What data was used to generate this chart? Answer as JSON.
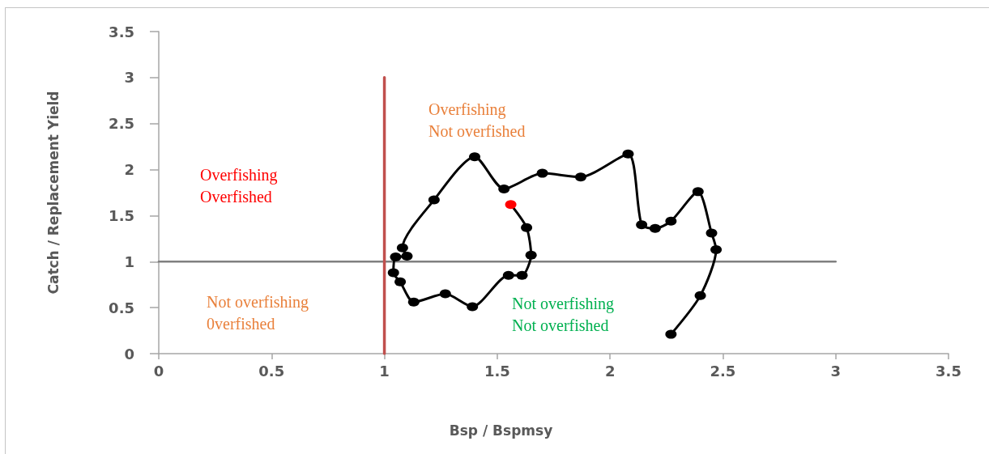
{
  "chart_data": {
    "type": "line",
    "xlabel": "Bsp / Bspmsy",
    "ylabel": "Catch / Replacement Yield",
    "xlim": [
      0,
      3.5
    ],
    "ylim": [
      0,
      3.5
    ],
    "xticks": [
      0,
      0.5,
      1,
      1.5,
      2,
      2.5,
      3,
      3.5
    ],
    "yticks": [
      0,
      0.5,
      1,
      1.5,
      2,
      2.5,
      3,
      3.5
    ],
    "grid": false,
    "marker": "circle",
    "line_style": "solid",
    "annotations": [
      "Overfishing\nOverfished",
      "Overfishing\nNot overfished",
      "Not overfishing\n0verfished",
      "Not overfishing\nNot overfished"
    ],
    "series": [
      {
        "color": "#808080",
        "marker": "none",
        "x": [
          0,
          3
        ],
        "values": [
          1,
          1
        ]
      },
      {
        "color": "#c0504d",
        "marker": "none",
        "x": [
          1,
          1
        ],
        "values": [
          0,
          3
        ]
      },
      {
        "color": "#000000",
        "colors": [
          "#000000",
          "#000000",
          "#000000",
          "#000000",
          "#000000",
          "#000000",
          "#000000",
          "#000000",
          "#000000",
          "#000000",
          "#000000",
          "#000000",
          "#000000",
          "#000000",
          "#000000",
          "#000000",
          "#000000",
          "#000000",
          "#000000",
          "#000000",
          "#000000",
          "#000000",
          "#000000",
          "#000000",
          "#000000",
          "#000000",
          "#ff0000"
        ],
        "x": [
          2.27,
          2.4,
          2.47,
          2.45,
          2.39,
          2.27,
          2.2,
          2.14,
          2.08,
          1.87,
          1.7,
          1.53,
          1.4,
          1.22,
          1.08,
          1.1,
          1.05,
          1.04,
          1.07,
          1.13,
          1.27,
          1.39,
          1.55,
          1.61,
          1.65,
          1.63,
          1.56
        ],
        "values": [
          0.21,
          0.63,
          1.13,
          1.31,
          1.76,
          1.44,
          1.36,
          1.4,
          2.17,
          1.92,
          1.96,
          1.79,
          2.14,
          1.67,
          1.15,
          1.06,
          1.05,
          0.88,
          0.78,
          0.56,
          0.65,
          0.51,
          0.85,
          0.85,
          1.07,
          1.37,
          1.62
        ]
      }
    ]
  }
}
